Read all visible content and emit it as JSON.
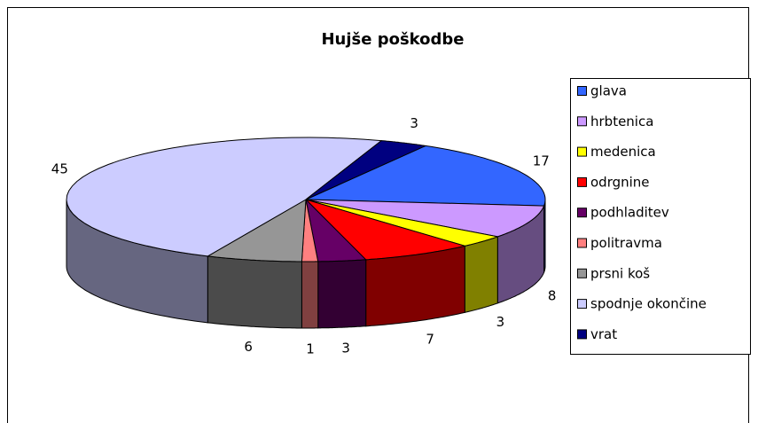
{
  "chart_data": {
    "type": "pie3d",
    "title": "Hujše poškodbe",
    "categories": [
      "glava",
      "hrbtenica",
      "medenica",
      "odrgnine",
      "podhladitev",
      "politravma",
      "prsni koš",
      "spodnje okončine",
      "vrat"
    ],
    "values": [
      17,
      8,
      3,
      7,
      3,
      1,
      6,
      45,
      3
    ],
    "colors": [
      "#3366ff",
      "#cc99ff",
      "#ffff00",
      "#ff0000",
      "#660066",
      "#ff8080",
      "#969696",
      "#ccccff",
      "#000080"
    ],
    "legend": "right"
  }
}
